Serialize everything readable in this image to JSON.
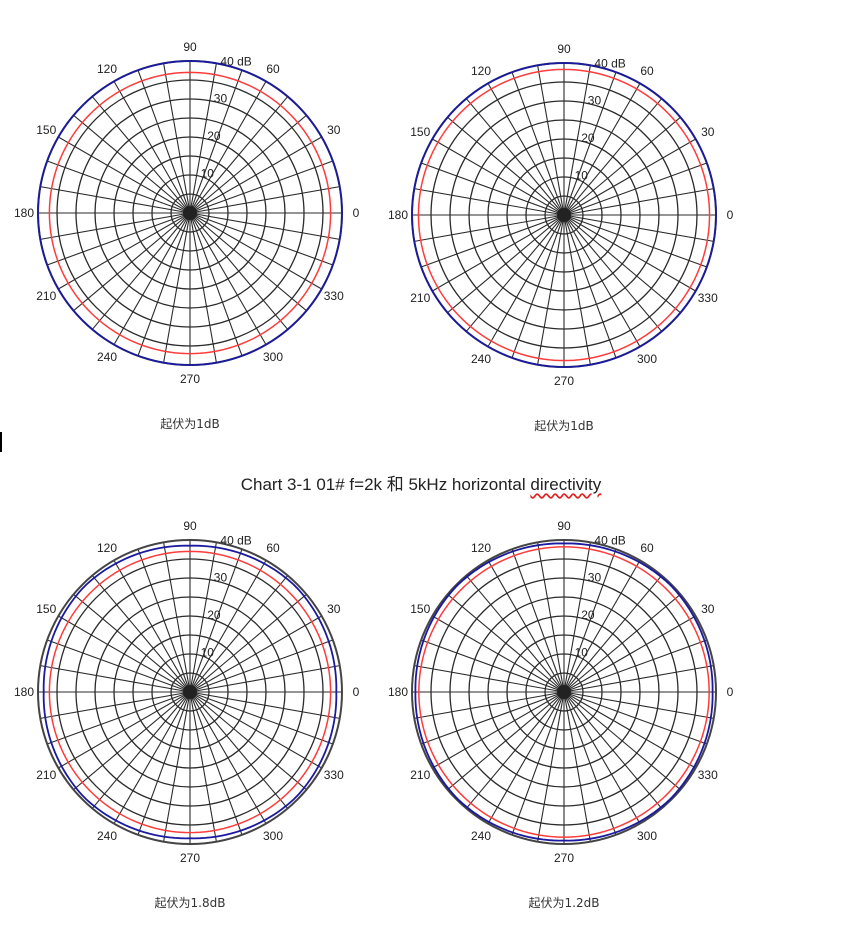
{
  "title": {
    "prefix": "Chart 3-1 01# f=2k 和 5kHz horizontal ",
    "underlined": "directivity"
  },
  "chart_data": [
    {
      "type": "polar",
      "angles_deg": [
        0,
        30,
        60,
        90,
        120,
        150,
        180,
        210,
        240,
        270,
        300,
        330
      ],
      "radial_ticks": [
        "10",
        "20",
        "30",
        "40 dB"
      ],
      "rmax_db": 40,
      "caption": "起伏为1dB",
      "series": [
        {
          "color": "#1a1aa0",
          "values": [
            {
              "a": 0,
              "r": 40
            },
            {
              "a": 60,
              "r": 40
            },
            {
              "a": 120,
              "r": 40
            },
            {
              "a": 180,
              "r": 40
            },
            {
              "a": 240,
              "r": 40
            },
            {
              "a": 300,
              "r": 40
            },
            {
              "a": 360,
              "r": 40
            }
          ]
        },
        {
          "color": "#ff3b3b",
          "values": [
            {
              "a": 0,
              "r": 37
            },
            {
              "a": 90,
              "r": 37
            },
            {
              "a": 180,
              "r": 37
            },
            {
              "a": 270,
              "r": 37
            },
            {
              "a": 360,
              "r": 37
            }
          ]
        }
      ]
    },
    {
      "type": "polar",
      "angles_deg": [
        0,
        30,
        60,
        90,
        120,
        150,
        180,
        210,
        240,
        270,
        300,
        330
      ],
      "radial_ticks": [
        "10",
        "20",
        "30",
        "40 dB"
      ],
      "rmax_db": 40,
      "caption": "起伏为1dB",
      "series": [
        {
          "color": "#1a1aa0",
          "values": [
            {
              "a": 0,
              "r": 40
            },
            {
              "a": 60,
              "r": 40
            },
            {
              "a": 120,
              "r": 40
            },
            {
              "a": 180,
              "r": 40
            },
            {
              "a": 240,
              "r": 40
            },
            {
              "a": 300,
              "r": 40
            },
            {
              "a": 360,
              "r": 40
            }
          ]
        },
        {
          "color": "#ff3b3b",
          "values": [
            {
              "a": 0,
              "r": 38.3
            },
            {
              "a": 90,
              "r": 38.3
            },
            {
              "a": 180,
              "r": 38.3
            },
            {
              "a": 270,
              "r": 38.3
            },
            {
              "a": 360,
              "r": 38.3
            }
          ]
        }
      ]
    },
    {
      "type": "polar",
      "angles_deg": [
        0,
        30,
        60,
        90,
        120,
        150,
        180,
        210,
        240,
        270,
        300,
        330
      ],
      "radial_ticks": [
        "10",
        "20",
        "30",
        "40 dB"
      ],
      "rmax_db": 40,
      "caption": "起伏为1.8dB",
      "series": [
        {
          "color": "#1a1aa0",
          "values": [
            {
              "a": 0,
              "r": 38.5
            },
            {
              "a": 45,
              "r": 39.3
            },
            {
              "a": 90,
              "r": 38.5
            },
            {
              "a": 135,
              "r": 39.3
            },
            {
              "a": 180,
              "r": 38.5
            },
            {
              "a": 225,
              "r": 39.3
            },
            {
              "a": 270,
              "r": 38.5
            },
            {
              "a": 315,
              "r": 39.3
            },
            {
              "a": 360,
              "r": 38.5
            }
          ]
        },
        {
          "color": "#ff3b3b",
          "values": [
            {
              "a": 0,
              "r": 37
            },
            {
              "a": 90,
              "r": 37
            },
            {
              "a": 180,
              "r": 37
            },
            {
              "a": 270,
              "r": 37
            },
            {
              "a": 360,
              "r": 37
            }
          ]
        }
      ]
    },
    {
      "type": "polar",
      "angles_deg": [
        0,
        30,
        60,
        90,
        120,
        150,
        180,
        210,
        240,
        270,
        300,
        330
      ],
      "radial_ticks": [
        "10",
        "20",
        "30",
        "40 dB"
      ],
      "rmax_db": 40,
      "caption": "起伏为1.2dB",
      "series": [
        {
          "color": "#1a1aa0",
          "values": [
            {
              "a": 0,
              "r": 39.1
            },
            {
              "a": 45,
              "r": 39.7
            },
            {
              "a": 90,
              "r": 39.1
            },
            {
              "a": 135,
              "r": 39.7
            },
            {
              "a": 180,
              "r": 39.1
            },
            {
              "a": 225,
              "r": 39.7
            },
            {
              "a": 270,
              "r": 39.1
            },
            {
              "a": 315,
              "r": 39.7
            },
            {
              "a": 360,
              "r": 39.1
            }
          ]
        },
        {
          "color": "#ff3b3b",
          "values": [
            {
              "a": 0,
              "r": 38.2
            },
            {
              "a": 90,
              "r": 38.2
            },
            {
              "a": 180,
              "r": 38.2
            },
            {
              "a": 270,
              "r": 38.2
            },
            {
              "a": 360,
              "r": 38.2
            }
          ]
        }
      ]
    }
  ]
}
